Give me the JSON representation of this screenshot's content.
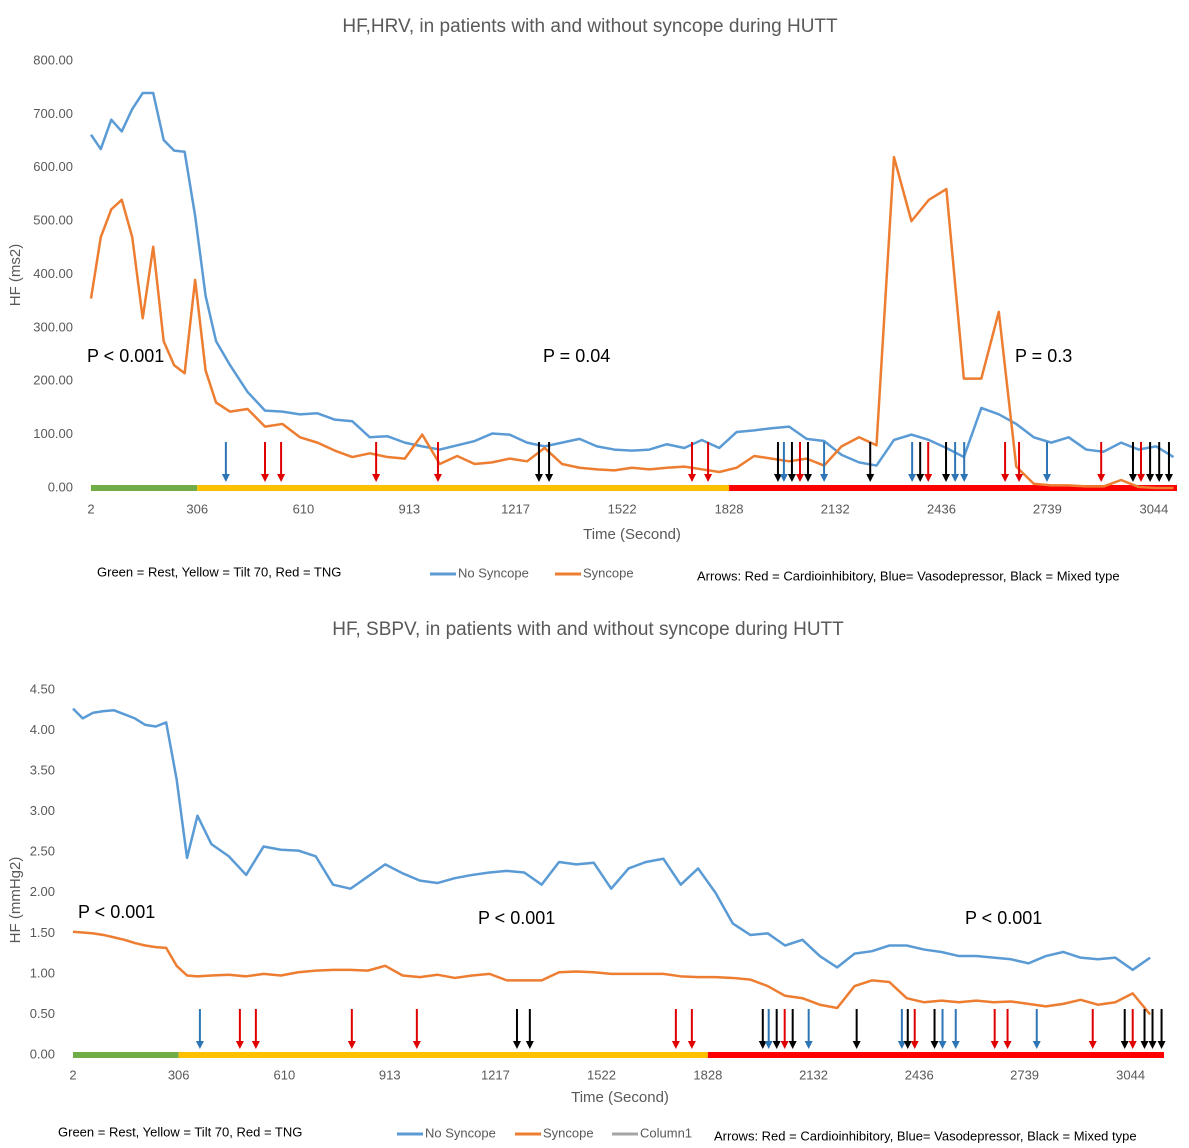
{
  "chart_data": [
    {
      "type": "line",
      "title": "HF,HRV, in patients with and without syncope during HUTT",
      "x_label": "Time (Second)",
      "y_label": "HF (ms2)",
      "x": [
        2,
        30,
        60,
        90,
        120,
        150,
        180,
        210,
        240,
        270,
        300,
        330,
        360,
        400,
        450,
        500,
        550,
        600,
        650,
        700,
        750,
        800,
        850,
        900,
        950,
        1000,
        1050,
        1100,
        1150,
        1200,
        1250,
        1300,
        1350,
        1400,
        1450,
        1500,
        1550,
        1600,
        1650,
        1700,
        1750,
        1800,
        1850,
        1900,
        1950,
        2000,
        2050,
        2100,
        2150,
        2200,
        2250,
        2300,
        2350,
        2400,
        2450,
        2500,
        2550,
        2600,
        2650,
        2700,
        2750,
        2800,
        2850,
        2900,
        2950,
        3000,
        3050,
        3100
      ],
      "xlim": [
        2,
        3110
      ],
      "xticks": [
        2,
        306,
        610,
        913,
        1217,
        1522,
        1828,
        2132,
        2436,
        2739,
        3044
      ],
      "ylim": [
        0,
        800
      ],
      "yticks": [
        {
          "value": 0,
          "label": "0.00"
        },
        {
          "value": 100,
          "label": "100.00"
        },
        {
          "value": 200,
          "label": "200.00"
        },
        {
          "value": 300,
          "label": "300.00"
        },
        {
          "value": 400,
          "label": "400.00"
        },
        {
          "value": 500,
          "label": "500.00"
        },
        {
          "value": 600,
          "label": "600.00"
        },
        {
          "value": 700,
          "label": "700.00"
        },
        {
          "value": 800,
          "label": "800.00"
        }
      ],
      "series": [
        {
          "name": "No Syncope",
          "color": "#5b9bd5",
          "values": [
            662,
            635,
            690,
            668,
            710,
            740,
            740,
            652,
            632,
            630,
            510,
            360,
            275,
            230,
            180,
            145,
            143,
            138,
            140,
            128,
            125,
            95,
            97,
            85,
            78,
            72,
            80,
            88,
            102,
            100,
            85,
            78,
            85,
            92,
            78,
            72,
            70,
            72,
            82,
            75,
            90,
            75,
            105,
            108,
            112,
            115,
            92,
            88,
            62,
            48,
            42,
            90,
            100,
            90,
            75,
            58,
            150,
            138,
            120,
            95,
            85,
            95,
            72,
            68,
            85,
            72,
            78,
            58
          ]
        },
        {
          "name": "Syncope",
          "color": "#ed7d31",
          "values": [
            355,
            470,
            522,
            540,
            470,
            318,
            452,
            275,
            230,
            215,
            390,
            220,
            160,
            143,
            148,
            115,
            120,
            95,
            85,
            70,
            58,
            65,
            58,
            55,
            100,
            45,
            60,
            45,
            48,
            55,
            50,
            75,
            45,
            38,
            35,
            33,
            38,
            35,
            38,
            40,
            35,
            30,
            38,
            60,
            55,
            50,
            55,
            42,
            78,
            95,
            80,
            620,
            500,
            540,
            560,
            205,
            205,
            330,
            40,
            8,
            5,
            5,
            3,
            3,
            15,
            2,
            0,
            0
          ]
        }
      ],
      "phases": [
        {
          "start": 2,
          "end": 306,
          "color": "#70ad47"
        },
        {
          "start": 306,
          "end": 1828,
          "color": "#ffc000"
        },
        {
          "start": 1828,
          "end": 3110,
          "color": "#ff0000"
        }
      ],
      "arrows": [
        {
          "x": 388,
          "color": "#2e75b6"
        },
        {
          "x": 500,
          "color": "#e00000"
        },
        {
          "x": 546,
          "color": "#e00000"
        },
        {
          "x": 818,
          "color": "#e00000"
        },
        {
          "x": 995,
          "color": "#e00000"
        },
        {
          "x": 1284,
          "color": "#000000"
        },
        {
          "x": 1313,
          "color": "#000000"
        },
        {
          "x": 1722,
          "color": "#e00000"
        },
        {
          "x": 1768,
          "color": "#e00000"
        },
        {
          "x": 1968,
          "color": "#000000"
        },
        {
          "x": 1985,
          "color": "#2e75b6"
        },
        {
          "x": 2008,
          "color": "#000000"
        },
        {
          "x": 2031,
          "color": "#e00000"
        },
        {
          "x": 2054,
          "color": "#000000"
        },
        {
          "x": 2100,
          "color": "#2e75b6"
        },
        {
          "x": 2232,
          "color": "#000000"
        },
        {
          "x": 2352,
          "color": "#2e75b6"
        },
        {
          "x": 2375,
          "color": "#000000"
        },
        {
          "x": 2398,
          "color": "#e00000"
        },
        {
          "x": 2449,
          "color": "#000000"
        },
        {
          "x": 2475,
          "color": "#2e75b6"
        },
        {
          "x": 2501,
          "color": "#2e75b6"
        },
        {
          "x": 2618,
          "color": "#e00000"
        },
        {
          "x": 2658,
          "color": "#e00000"
        },
        {
          "x": 2738,
          "color": "#2e75b6"
        },
        {
          "x": 2893,
          "color": "#e00000"
        },
        {
          "x": 2984,
          "color": "#000000"
        },
        {
          "x": 3007,
          "color": "#e00000"
        },
        {
          "x": 3033,
          "color": "#000000"
        },
        {
          "x": 3059,
          "color": "#000000"
        },
        {
          "x": 3087,
          "color": "#000000"
        }
      ],
      "annotations": [
        "P < 0.001",
        "P = 0.04",
        "P = 0.3"
      ],
      "phase_note": "Green = Rest, Yellow = Tilt 70, Red = TNG",
      "arrow_note": "Arrows: Red = Cardioinhibitory, Blue= Vasodepressor, Black = Mixed type"
    },
    {
      "type": "line",
      "title": "HF, SBPV, in patients with and without syncope during HUTT",
      "x_label": "Time (Second)",
      "y_label": "HF (mmHg2)",
      "x": [
        2,
        30,
        60,
        90,
        120,
        150,
        180,
        210,
        240,
        270,
        300,
        330,
        360,
        400,
        450,
        500,
        550,
        600,
        650,
        700,
        750,
        800,
        850,
        900,
        950,
        1000,
        1050,
        1100,
        1150,
        1200,
        1250,
        1300,
        1350,
        1400,
        1450,
        1500,
        1550,
        1600,
        1650,
        1700,
        1750,
        1800,
        1850,
        1900,
        1950,
        2000,
        2050,
        2100,
        2150,
        2200,
        2250,
        2300,
        2350,
        2400,
        2450,
        2500,
        2550,
        2600,
        2650,
        2700,
        2750,
        2800,
        2850,
        2900,
        2950,
        3000,
        3050,
        3100
      ],
      "xlim": [
        2,
        3140
      ],
      "xticks": [
        2,
        306,
        610,
        913,
        1217,
        1522,
        1828,
        2132,
        2436,
        2739,
        3044
      ],
      "ylim": [
        0,
        4.5
      ],
      "yticks": [
        {
          "value": 0,
          "label": "0.00"
        },
        {
          "value": 0.5,
          "label": "0.50"
        },
        {
          "value": 1,
          "label": "1.00"
        },
        {
          "value": 1.5,
          "label": "1.50"
        },
        {
          "value": 2,
          "label": "2.00"
        },
        {
          "value": 2.5,
          "label": "2.50"
        },
        {
          "value": 3,
          "label": "3.00"
        },
        {
          "value": 3.5,
          "label": "3.50"
        },
        {
          "value": 4,
          "label": "4.00"
        },
        {
          "value": 4.5,
          "label": "4.50"
        }
      ],
      "series": [
        {
          "name": "No Syncope",
          "color": "#5b9bd5",
          "values": [
            4.27,
            4.15,
            4.22,
            4.24,
            4.25,
            4.2,
            4.15,
            4.07,
            4.05,
            4.1,
            3.4,
            2.43,
            2.95,
            2.6,
            2.45,
            2.22,
            2.57,
            2.53,
            2.52,
            2.45,
            2.1,
            2.05,
            2.2,
            2.35,
            2.24,
            2.15,
            2.12,
            2.18,
            2.22,
            2.25,
            2.27,
            2.25,
            2.1,
            2.38,
            2.35,
            2.37,
            2.05,
            2.3,
            2.38,
            2.42,
            2.1,
            2.3,
            2.0,
            1.62,
            1.48,
            1.5,
            1.35,
            1.42,
            1.22,
            1.08,
            1.25,
            1.28,
            1.35,
            1.35,
            1.3,
            1.27,
            1.22,
            1.22,
            1.2,
            1.18,
            1.13,
            1.22,
            1.27,
            1.2,
            1.18,
            1.2,
            1.05,
            1.2
          ]
        },
        {
          "name": "Syncope",
          "color": "#ed7d31",
          "values": [
            1.52,
            1.51,
            1.5,
            1.48,
            1.45,
            1.42,
            1.38,
            1.35,
            1.33,
            1.32,
            1.1,
            0.98,
            0.97,
            0.98,
            0.99,
            0.97,
            1.0,
            0.98,
            1.02,
            1.04,
            1.05,
            1.05,
            1.04,
            1.1,
            0.98,
            0.96,
            0.99,
            0.95,
            0.98,
            1.0,
            0.92,
            0.92,
            0.92,
            1.02,
            1.03,
            1.02,
            1.0,
            1.0,
            1.0,
            1.0,
            0.97,
            0.96,
            0.96,
            0.95,
            0.93,
            0.85,
            0.73,
            0.7,
            0.62,
            0.58,
            0.85,
            0.92,
            0.9,
            0.7,
            0.65,
            0.67,
            0.65,
            0.67,
            0.65,
            0.66,
            0.63,
            0.6,
            0.63,
            0.68,
            0.62,
            0.65,
            0.76,
            0.5
          ]
        },
        {
          "name": "Column1",
          "color": "#a5a5a5",
          "values": [
            null,
            null,
            null,
            null,
            null,
            null,
            null,
            null,
            null,
            null,
            null,
            null,
            null,
            null,
            null,
            null,
            null,
            null,
            null,
            null,
            null,
            null,
            null,
            null,
            null,
            null,
            null,
            null,
            null,
            null,
            null,
            null,
            null,
            null,
            null,
            null,
            null,
            null,
            null,
            null,
            null,
            null,
            null,
            null,
            null,
            null,
            null,
            null,
            null,
            null,
            null,
            null,
            null,
            null,
            null,
            null,
            null,
            null,
            null,
            null,
            null,
            null,
            null,
            null,
            null,
            null,
            null,
            null
          ]
        }
      ],
      "phases": [
        {
          "start": 2,
          "end": 306,
          "color": "#70ad47"
        },
        {
          "start": 306,
          "end": 1828,
          "color": "#ffc000"
        },
        {
          "start": 1828,
          "end": 3140,
          "color": "#ff0000"
        }
      ],
      "arrows": [
        {
          "x": 367,
          "color": "#2e75b6"
        },
        {
          "x": 482,
          "color": "#e00000"
        },
        {
          "x": 528,
          "color": "#e00000"
        },
        {
          "x": 804,
          "color": "#e00000"
        },
        {
          "x": 991,
          "color": "#e00000"
        },
        {
          "x": 1279,
          "color": "#000000"
        },
        {
          "x": 1316,
          "color": "#000000"
        },
        {
          "x": 1736,
          "color": "#e00000"
        },
        {
          "x": 1782,
          "color": "#e00000"
        },
        {
          "x": 1986,
          "color": "#000000"
        },
        {
          "x": 2003,
          "color": "#2e75b6"
        },
        {
          "x": 2026,
          "color": "#000000"
        },
        {
          "x": 2049,
          "color": "#e00000"
        },
        {
          "x": 2072,
          "color": "#000000"
        },
        {
          "x": 2118,
          "color": "#2e75b6"
        },
        {
          "x": 2256,
          "color": "#000000"
        },
        {
          "x": 2386,
          "color": "#2e75b6"
        },
        {
          "x": 2403,
          "color": "#000000"
        },
        {
          "x": 2423,
          "color": "#e00000"
        },
        {
          "x": 2480,
          "color": "#000000"
        },
        {
          "x": 2503,
          "color": "#2e75b6"
        },
        {
          "x": 2541,
          "color": "#2e75b6"
        },
        {
          "x": 2653,
          "color": "#e00000"
        },
        {
          "x": 2690,
          "color": "#e00000"
        },
        {
          "x": 2774,
          "color": "#2e75b6"
        },
        {
          "x": 2935,
          "color": "#e00000"
        },
        {
          "x": 3027,
          "color": "#000000"
        },
        {
          "x": 3050,
          "color": "#e00000"
        },
        {
          "x": 3084,
          "color": "#000000"
        },
        {
          "x": 3107,
          "color": "#000000"
        },
        {
          "x": 3133,
          "color": "#000000"
        }
      ],
      "annotations": [
        "P < 0.001",
        "P < 0.001",
        "P < 0.001"
      ],
      "phase_note": "Green = Rest, Yellow = Tilt 70, Red = TNG",
      "arrow_note": "Arrows: Red = Cardioinhibitory, Blue= Vasodepressor, Black = Mixed type"
    }
  ]
}
